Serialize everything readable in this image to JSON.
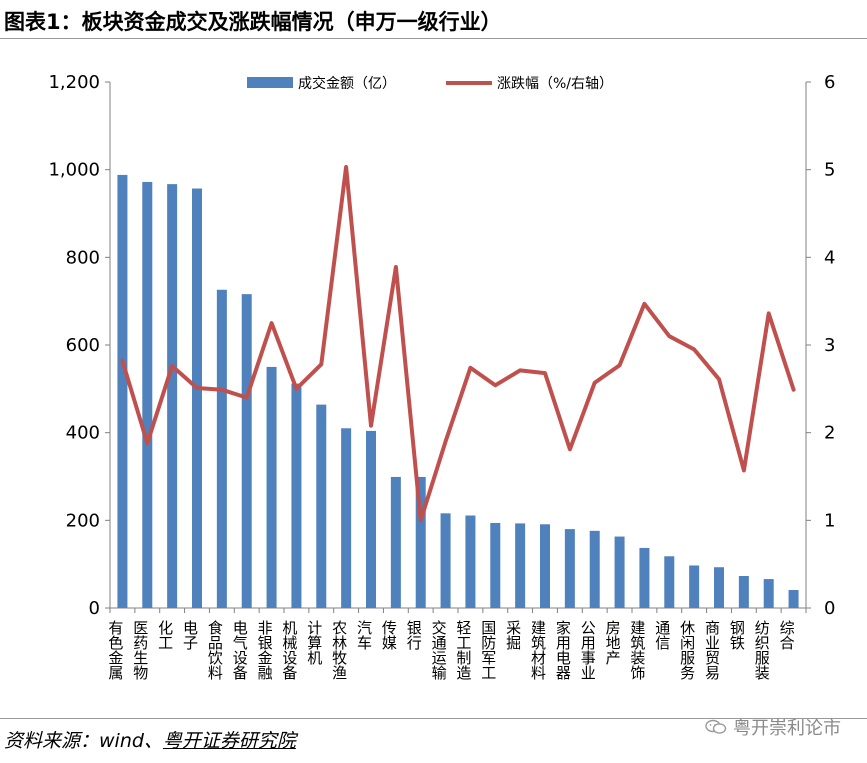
{
  "header": {
    "title": "图表1：板块资金成交及涨跌幅情况（申万一级行业）"
  },
  "footer": {
    "source_prefix": "资料来源：wind、",
    "source_org": "粤开证券研究院",
    "watermark": "粤开崇利论市"
  },
  "chart_data": {
    "type": "bar",
    "categories": [
      "有色金属",
      "医药生物",
      "化工",
      "电子",
      "食品饮料",
      "电气设备",
      "非银金融",
      "机械设备",
      "计算机",
      "农林牧渔",
      "汽车",
      "传媒",
      "银行",
      "交通运输",
      "轻工制造",
      "国防军工",
      "采掘",
      "建筑材料",
      "家用电器",
      "公用事业",
      "房地产",
      "建筑装饰",
      "通信",
      "休闲服务",
      "商业贸易",
      "钢铁",
      "纺织服装",
      "综合"
    ],
    "series": [
      {
        "name": "成交金额（亿）",
        "axis": "left",
        "type": "bar",
        "color": "#4f81bd",
        "values": [
          988,
          972,
          967,
          957,
          726,
          716,
          550,
          512,
          464,
          410,
          404,
          299,
          299,
          216,
          211,
          194,
          193,
          191,
          180,
          176,
          163,
          137,
          118,
          97,
          93,
          73,
          66,
          41
        ]
      },
      {
        "name": "涨跌幅（%/右轴）",
        "axis": "right",
        "type": "line",
        "color": "#c0504d",
        "values": [
          2.82,
          1.88,
          2.76,
          2.51,
          2.49,
          2.4,
          3.25,
          2.5,
          2.78,
          5.03,
          2.08,
          3.89,
          1.0,
          1.9,
          2.74,
          2.54,
          2.71,
          2.68,
          1.81,
          2.57,
          2.77,
          3.47,
          3.1,
          2.95,
          2.61,
          1.57,
          3.36,
          2.49
        ]
      }
    ],
    "y_left": {
      "min": 0,
      "max": 1200,
      "ticks": [
        "0",
        "200",
        "400",
        "600",
        "800",
        "1,000",
        "1,200"
      ]
    },
    "y_right": {
      "min": 0,
      "max": 6,
      "ticks": [
        "0",
        "1",
        "2",
        "3",
        "4",
        "5",
        "6"
      ]
    },
    "legend_position": "top",
    "grid": false
  }
}
